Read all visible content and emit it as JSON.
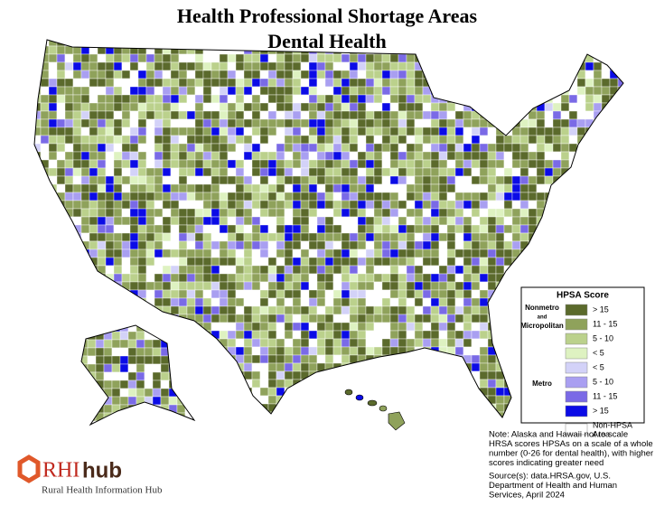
{
  "title": [
    "Health Professional Shortage Areas",
    "Dental Health"
  ],
  "legend": {
    "title": "HPSA Score",
    "groups": [
      {
        "label": [
          "Nonmetro",
          "and",
          "Micropolitan"
        ],
        "items": [
          {
            "label": "> 15",
            "color": "#5b6a2c"
          },
          {
            "label": "11 - 15",
            "color": "#8fa25b"
          },
          {
            "label": "5 - 10",
            "color": "#bbd18c"
          },
          {
            "label": "< 5",
            "color": "#def2c1"
          }
        ]
      },
      {
        "label": [
          "Metro"
        ],
        "items": [
          {
            "label": "< 5",
            "color": "#d3d2f8"
          },
          {
            "label": "5 - 10",
            "color": "#a99ff1"
          },
          {
            "label": "11 - 15",
            "color": "#7a6ae6"
          },
          {
            "label": "> 15",
            "color": "#0b0be6"
          }
        ]
      }
    ],
    "other": {
      "label": [
        "Non-HPSA",
        "Area"
      ],
      "color": "#ffffff"
    }
  },
  "note": [
    "Note: Alaska and Hawaii not to scale",
    "HRSA scores HPSAs on a scale of a whole",
    "number (0-26 for dental health), with higher",
    "scores indicating greater need"
  ],
  "source": [
    "Source(s): data.HRSA.gov, U.S.",
    "Department of Health and Human",
    "Services, April 2024"
  ],
  "logo": {
    "mark": "RHI",
    "word": "hub",
    "tagline": "Rural Health Information Hub"
  }
}
